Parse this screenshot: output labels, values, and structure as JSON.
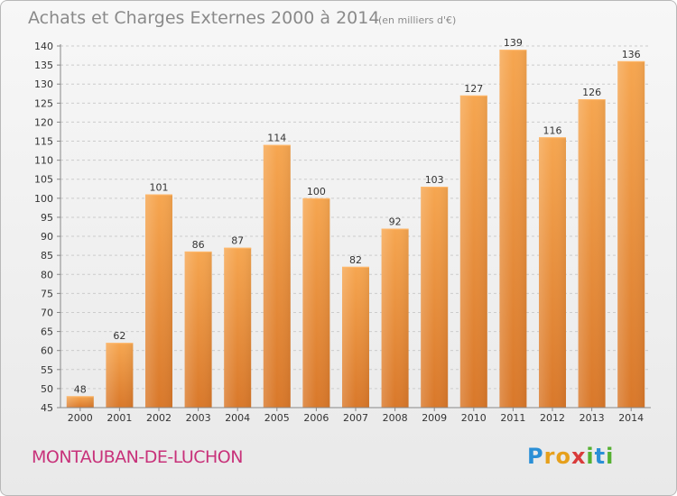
{
  "header": {
    "title": "Achats et Charges Externes 2000 à 2014",
    "subtitle": "(en milliers d'€)"
  },
  "footer": {
    "commune": "MONTAUBAN-DE-LUCHON",
    "logo_letters": [
      "P",
      "r",
      "o",
      "x",
      "i",
      "t",
      "i"
    ],
    "logo_colors": [
      "#2a8fd6",
      "#e6a01c",
      "#e6a01c",
      "#d93b3b",
      "#55b031",
      "#2a8fd6",
      "#55b031"
    ]
  },
  "chart_data": {
    "type": "bar",
    "title": "Achats et Charges Externes 2000 à 2014",
    "subtitle": "(en milliers d'€)",
    "categories": [
      "2000",
      "2001",
      "2002",
      "2003",
      "2004",
      "2005",
      "2006",
      "2007",
      "2008",
      "2009",
      "2010",
      "2011",
      "2012",
      "2013",
      "2014"
    ],
    "values": [
      48,
      62,
      101,
      86,
      87,
      114,
      100,
      82,
      92,
      103,
      127,
      139,
      116,
      126,
      136
    ],
    "ylim": [
      45,
      140
    ],
    "yticks": [
      45,
      50,
      55,
      60,
      65,
      70,
      75,
      80,
      85,
      90,
      95,
      100,
      105,
      110,
      115,
      120,
      125,
      130,
      135,
      140
    ],
    "bar_color": "#f19a3e",
    "bar_dark_color": "#d9782a",
    "grid": true
  }
}
